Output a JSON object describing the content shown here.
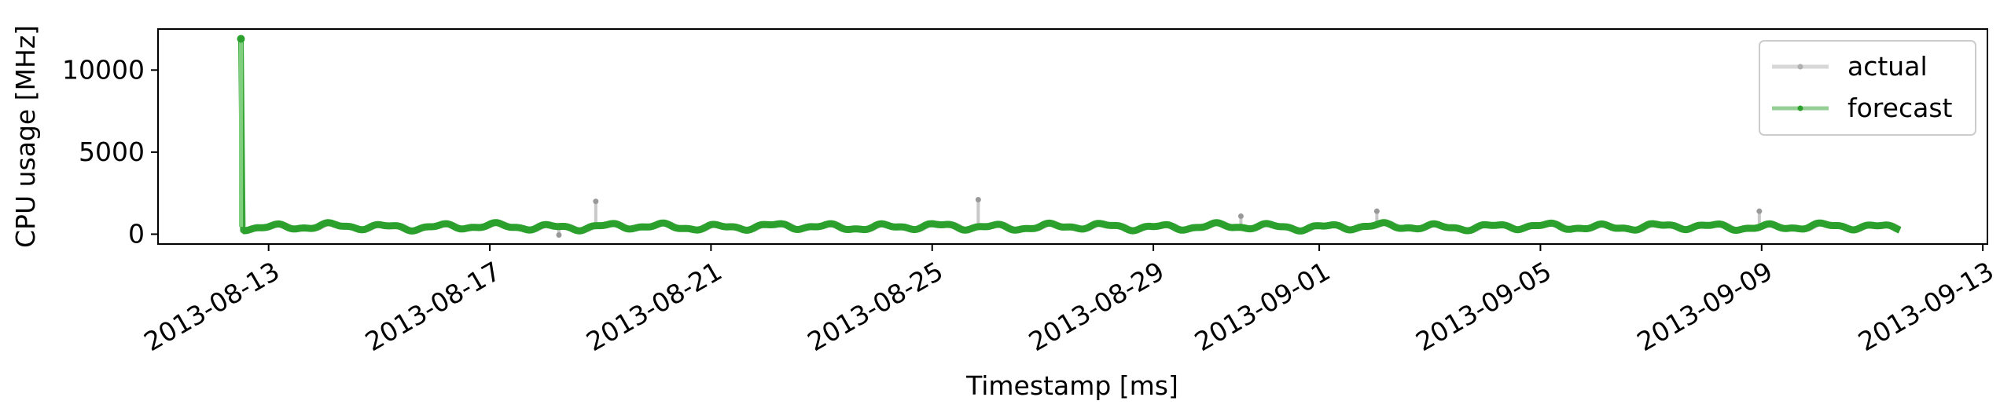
{
  "chart_data": {
    "type": "line",
    "title": "",
    "xlabel": "Timestamp [ms]",
    "ylabel": "CPU usage [MHz]",
    "x_range": [
      "2013-08-11T00:00",
      "2013-09-13T02:00"
    ],
    "ylim": [
      -600,
      12500
    ],
    "grid": false,
    "legend_position": "top-right",
    "x_ticks": [
      "2013-08-13",
      "2013-08-17",
      "2013-08-21",
      "2013-08-25",
      "2013-08-29",
      "2013-09-01",
      "2013-09-05",
      "2013-09-09",
      "2013-09-13"
    ],
    "y_ticks": [
      0,
      5000,
      10000
    ],
    "series": [
      {
        "name": "actual",
        "color": "#b0b0b0",
        "start": "2013-08-12T12:00",
        "end": "2013-09-11T12:00",
        "baseline_mhz": 450,
        "amplitude_mhz": 150,
        "spikes": [
          {
            "x": "2013-08-18T22:00",
            "y": 2000
          },
          {
            "x": "2013-08-25T20:00",
            "y": 2100
          },
          {
            "x": "2013-09-02T01:00",
            "y": 1400
          },
          {
            "x": "2013-09-08T23:00",
            "y": 1400
          },
          {
            "x": "2013-08-30T14:00",
            "y": 1100
          },
          {
            "x": "2013-08-18T06:00",
            "y": -50
          }
        ]
      },
      {
        "name": "forecast",
        "color": "#2ca02c",
        "start": "2013-08-12T12:00",
        "end": "2013-09-11T12:00",
        "initial_value": 11900,
        "baseline_mhz": 450,
        "amplitude_mhz": 150
      }
    ]
  }
}
